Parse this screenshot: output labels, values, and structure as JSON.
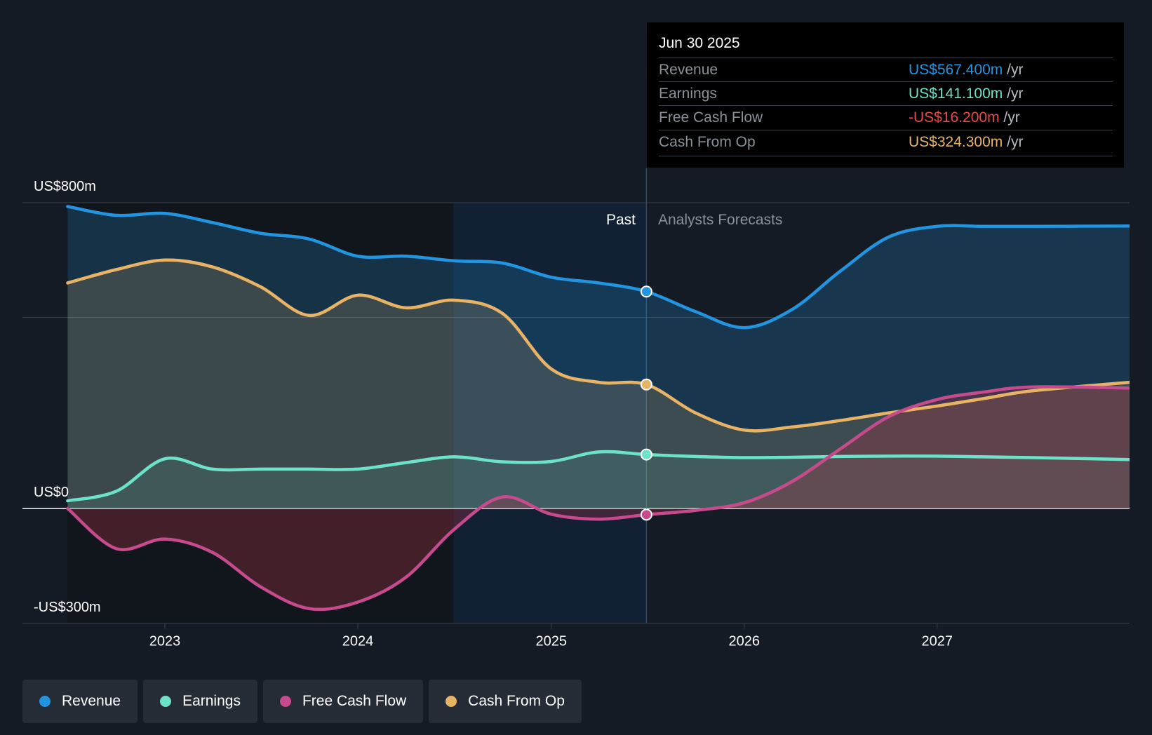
{
  "chart_data": {
    "type": "area",
    "y_unit_labels": [
      "US$800m",
      "US$0",
      "-US$300m"
    ],
    "ylim": [
      -300,
      800
    ],
    "xlim": [
      "2022-07-01",
      "2027-12-31"
    ],
    "x_ticks": [
      {
        "label": "2023",
        "date": "2023-01-01"
      },
      {
        "label": "2024",
        "date": "2024-01-01"
      },
      {
        "label": "2025",
        "date": "2025-01-01"
      },
      {
        "label": "2026",
        "date": "2026-01-01"
      },
      {
        "label": "2027",
        "date": "2027-01-01"
      }
    ],
    "grid": {
      "horizontal": [
        800,
        500,
        0
      ]
    },
    "regions": {
      "past_label": "Past",
      "forecast_label": "Analysts Forecasts",
      "divider_date": "2025-06-30",
      "highlight_start": "2024-06-30"
    },
    "series": [
      {
        "name": "Revenue",
        "color": "#2394df",
        "points": [
          [
            "2022-07-01",
            790
          ],
          [
            "2022-10-01",
            767
          ],
          [
            "2023-01-01",
            772
          ],
          [
            "2023-04-01",
            748
          ],
          [
            "2023-07-01",
            720
          ],
          [
            "2023-10-01",
            705
          ],
          [
            "2024-01-01",
            660
          ],
          [
            "2024-04-01",
            660
          ],
          [
            "2024-07-01",
            648
          ],
          [
            "2024-10-01",
            642
          ],
          [
            "2025-01-01",
            605
          ],
          [
            "2025-04-01",
            590
          ],
          [
            "2025-06-30",
            567.4
          ],
          [
            "2025-10-01",
            515
          ],
          [
            "2026-01-01",
            473
          ],
          [
            "2026-04-01",
            520
          ],
          [
            "2026-07-01",
            620
          ],
          [
            "2026-10-01",
            710
          ],
          [
            "2027-01-01",
            738
          ],
          [
            "2027-04-01",
            738
          ],
          [
            "2027-07-01",
            738
          ],
          [
            "2027-12-31",
            739
          ]
        ]
      },
      {
        "name": "Cash From Op",
        "color": "#e8b365",
        "points": [
          [
            "2022-07-01",
            590
          ],
          [
            "2022-10-01",
            625
          ],
          [
            "2023-01-01",
            650
          ],
          [
            "2023-04-01",
            632
          ],
          [
            "2023-07-01",
            580
          ],
          [
            "2023-10-01",
            505
          ],
          [
            "2024-01-01",
            558
          ],
          [
            "2024-04-01",
            525
          ],
          [
            "2024-07-01",
            545
          ],
          [
            "2024-10-01",
            510
          ],
          [
            "2025-01-01",
            365
          ],
          [
            "2025-04-01",
            330
          ],
          [
            "2025-06-30",
            324.3
          ],
          [
            "2025-10-01",
            250
          ],
          [
            "2026-01-01",
            205
          ],
          [
            "2026-04-01",
            213
          ],
          [
            "2026-07-01",
            230
          ],
          [
            "2026-10-01",
            250
          ],
          [
            "2027-01-01",
            268
          ],
          [
            "2027-04-01",
            288
          ],
          [
            "2027-07-01",
            308
          ],
          [
            "2027-12-31",
            330
          ]
        ]
      },
      {
        "name": "Earnings",
        "color": "#6ce2c9",
        "points": [
          [
            "2022-07-01",
            20
          ],
          [
            "2022-10-01",
            45
          ],
          [
            "2023-01-01",
            130
          ],
          [
            "2023-04-01",
            103
          ],
          [
            "2023-07-01",
            103
          ],
          [
            "2023-10-01",
            103
          ],
          [
            "2024-01-01",
            103
          ],
          [
            "2024-04-01",
            120
          ],
          [
            "2024-07-01",
            135
          ],
          [
            "2024-10-01",
            122
          ],
          [
            "2025-01-01",
            123
          ],
          [
            "2025-04-01",
            148
          ],
          [
            "2025-06-30",
            141.1
          ],
          [
            "2025-10-01",
            136
          ],
          [
            "2026-01-01",
            133
          ],
          [
            "2026-04-01",
            134
          ],
          [
            "2026-07-01",
            136
          ],
          [
            "2026-10-01",
            137
          ],
          [
            "2027-01-01",
            137
          ],
          [
            "2027-04-01",
            135
          ],
          [
            "2027-07-01",
            133
          ],
          [
            "2027-12-31",
            128
          ]
        ]
      },
      {
        "name": "Free Cash Flow",
        "color": "#c54b8d",
        "points": [
          [
            "2022-07-01",
            0
          ],
          [
            "2022-10-01",
            -105
          ],
          [
            "2023-01-01",
            -80
          ],
          [
            "2023-04-01",
            -115
          ],
          [
            "2023-07-01",
            -205
          ],
          [
            "2023-10-01",
            -262
          ],
          [
            "2024-01-01",
            -245
          ],
          [
            "2024-04-01",
            -180
          ],
          [
            "2024-07-01",
            -55
          ],
          [
            "2024-10-01",
            30
          ],
          [
            "2025-01-01",
            -15
          ],
          [
            "2025-04-01",
            -28
          ],
          [
            "2025-06-30",
            -16.2
          ],
          [
            "2025-10-01",
            -5
          ],
          [
            "2026-01-01",
            15
          ],
          [
            "2026-04-01",
            70
          ],
          [
            "2026-07-01",
            155
          ],
          [
            "2026-10-01",
            240
          ],
          [
            "2027-01-01",
            285
          ],
          [
            "2027-04-01",
            305
          ],
          [
            "2027-07-01",
            318
          ],
          [
            "2027-12-31",
            315
          ]
        ]
      }
    ],
    "highlight_date": "2025-06-30"
  },
  "tooltip": {
    "date": "Jun 30 2025",
    "rows": [
      {
        "label": "Revenue",
        "value": "US$567.400m",
        "unit": "/yr",
        "color": "#2394df"
      },
      {
        "label": "Earnings",
        "value": "US$141.100m",
        "unit": "/yr",
        "color": "#6ce2c9"
      },
      {
        "label": "Free Cash Flow",
        "value": "-US$16.200m",
        "unit": "/yr",
        "color": "#e64a4a"
      },
      {
        "label": "Cash From Op",
        "value": "US$324.300m",
        "unit": "/yr",
        "color": "#e8b365"
      }
    ]
  },
  "legend": [
    {
      "label": "Revenue",
      "color": "#2394df"
    },
    {
      "label": "Earnings",
      "color": "#6ce2c9"
    },
    {
      "label": "Free Cash Flow",
      "color": "#c54b8d"
    },
    {
      "label": "Cash From Op",
      "color": "#e8b365"
    }
  ]
}
